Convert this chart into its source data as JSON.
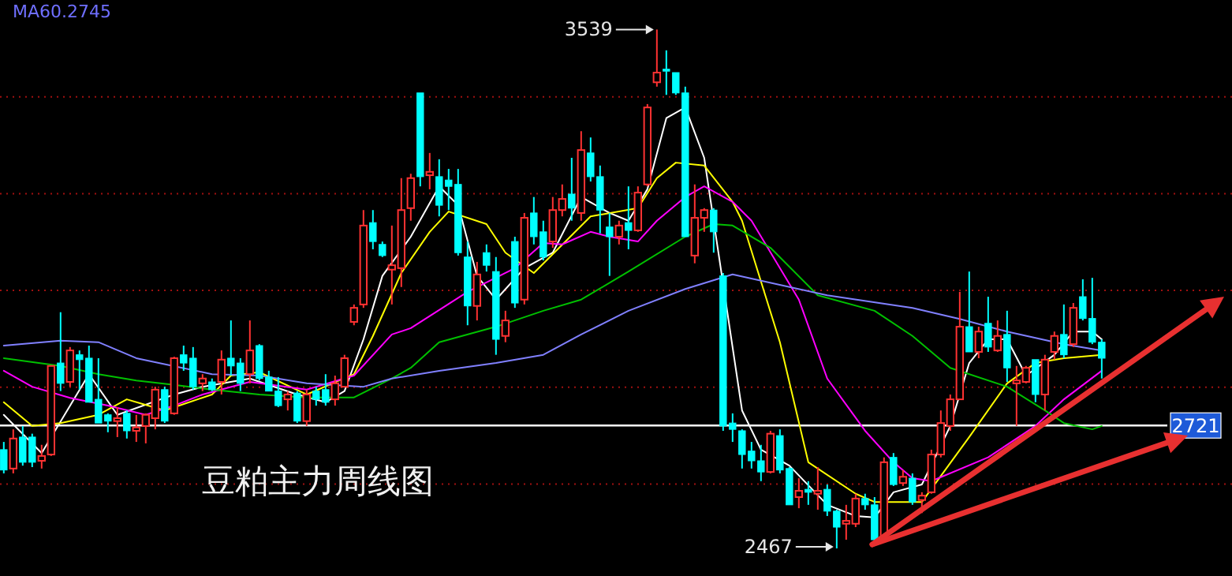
{
  "chart_data": {
    "type": "candlestick",
    "title": "豆粕主力周线图",
    "categories": [
      null,
      null,
      null,
      null,
      null,
      null,
      null,
      null,
      null,
      null,
      null,
      null,
      null,
      null,
      null,
      null,
      null,
      null,
      null,
      null,
      null,
      null,
      null,
      null,
      null,
      null,
      null,
      null,
      null,
      null,
      null,
      null,
      null,
      null,
      null,
      null,
      null,
      null,
      null,
      null,
      null,
      null,
      null,
      null,
      null,
      null,
      null,
      null,
      null,
      null,
      null,
      null,
      null,
      null,
      null,
      null,
      null,
      null,
      null,
      null,
      null,
      null,
      null,
      null,
      null,
      null,
      null,
      null,
      null,
      null,
      null,
      null,
      null,
      null,
      null,
      null,
      null,
      null,
      null,
      null,
      null,
      null,
      null,
      null,
      null,
      null,
      null,
      null,
      null,
      null,
      null,
      null,
      null,
      null,
      null,
      null,
      null,
      null,
      null,
      null,
      null,
      null,
      null,
      null,
      null,
      null,
      null,
      null,
      null,
      null,
      null,
      null,
      null,
      null,
      null,
      null,
      null
    ],
    "ohlc": [
      [
        2671,
        2687,
        2622,
        2629
      ],
      [
        2632,
        2713,
        2622,
        2694
      ],
      [
        2697,
        2720,
        2638,
        2645
      ],
      [
        2697,
        2704,
        2635,
        2645
      ],
      [
        2648,
        2681,
        2632,
        2658
      ],
      [
        2661,
        2844,
        2658,
        2844
      ],
      [
        2850,
        2955,
        2792,
        2808
      ],
      [
        2811,
        2883,
        2801,
        2876
      ],
      [
        2867,
        2876,
        2795,
        2857
      ],
      [
        2860,
        2886,
        2769,
        2769
      ],
      [
        2775,
        2860,
        2726,
        2726
      ],
      [
        2743,
        2746,
        2707,
        2730
      ],
      [
        2730,
        2759,
        2697,
        2736
      ],
      [
        2746,
        2752,
        2694,
        2710
      ],
      [
        2710,
        2743,
        2687,
        2717
      ],
      [
        2720,
        2746,
        2684,
        2743
      ],
      [
        2736,
        2801,
        2713,
        2795
      ],
      [
        2795,
        2801,
        2726,
        2730
      ],
      [
        2746,
        2863,
        2743,
        2860
      ],
      [
        2867,
        2886,
        2834,
        2850
      ],
      [
        2860,
        2883,
        2795,
        2801
      ],
      [
        2808,
        2827,
        2792,
        2818
      ],
      [
        2811,
        2818,
        2792,
        2795
      ],
      [
        2811,
        2876,
        2785,
        2857
      ],
      [
        2860,
        2938,
        2824,
        2844
      ],
      [
        2850,
        2860,
        2792,
        2808
      ],
      [
        2827,
        2938,
        2808,
        2876
      ],
      [
        2886,
        2889,
        2814,
        2818
      ],
      [
        2821,
        2834,
        2792,
        2792
      ],
      [
        2792,
        2821,
        2759,
        2762
      ],
      [
        2775,
        2792,
        2752,
        2785
      ],
      [
        2788,
        2792,
        2726,
        2730
      ],
      [
        2730,
        2795,
        2720,
        2785
      ],
      [
        2792,
        2801,
        2762,
        2775
      ],
      [
        2795,
        2827,
        2762,
        2769
      ],
      [
        2775,
        2824,
        2762,
        2808
      ],
      [
        2801,
        2867,
        2801,
        2860
      ],
      [
        2935,
        2971,
        2928,
        2964
      ],
      [
        2971,
        3166,
        2964,
        3134
      ],
      [
        3140,
        3166,
        3085,
        3101
      ],
      [
        3095,
        3101,
        3069,
        3072
      ],
      [
        3043,
        3134,
        2971,
        3052
      ],
      [
        3046,
        3232,
        3007,
        3166
      ],
      [
        3170,
        3241,
        3144,
        3232
      ],
      [
        3408,
        3408,
        3215,
        3235
      ],
      [
        3238,
        3284,
        3209,
        3245
      ],
      [
        3235,
        3271,
        3153,
        3176
      ],
      [
        3228,
        3251,
        3166,
        3215
      ],
      [
        3219,
        3251,
        3072,
        3078
      ],
      [
        3069,
        3101,
        2928,
        2968
      ],
      [
        2968,
        3059,
        2938,
        3033
      ],
      [
        3078,
        3095,
        3039,
        3052
      ],
      [
        3039,
        3069,
        2867,
        2899
      ],
      [
        2906,
        2958,
        2893,
        2938
      ],
      [
        3101,
        3111,
        2964,
        2974
      ],
      [
        2981,
        3160,
        2971,
        3150
      ],
      [
        3160,
        3193,
        3095,
        3111
      ],
      [
        3121,
        3144,
        3062,
        3069
      ],
      [
        3101,
        3193,
        3088,
        3166
      ],
      [
        3166,
        3219,
        3153,
        3189
      ],
      [
        3199,
        3274,
        3144,
        3170
      ],
      [
        3160,
        3329,
        3144,
        3290
      ],
      [
        3284,
        3316,
        3225,
        3235
      ],
      [
        3235,
        3258,
        3118,
        3166
      ],
      [
        3131,
        3160,
        3030,
        3111
      ],
      [
        3111,
        3144,
        3095,
        3134
      ],
      [
        3140,
        3215,
        3085,
        3124
      ],
      [
        3124,
        3215,
        3121,
        3202
      ],
      [
        3219,
        3385,
        3215,
        3378
      ],
      [
        3430,
        3539,
        3421,
        3450
      ],
      [
        3457,
        3496,
        3404,
        3453
      ],
      [
        3450,
        3450,
        3404,
        3408
      ],
      [
        3408,
        3421,
        3111,
        3111
      ],
      [
        3072,
        3219,
        3056,
        3150
      ],
      [
        3150,
        3170,
        3121,
        3166
      ],
      [
        3166,
        3170,
        3078,
        3121
      ],
      [
        3030,
        3036,
        2710,
        2720
      ],
      [
        2726,
        2746,
        2687,
        2713
      ],
      [
        2710,
        2713,
        2632,
        2661
      ],
      [
        2668,
        2687,
        2632,
        2648
      ],
      [
        2648,
        2681,
        2606,
        2625
      ],
      [
        2625,
        2710,
        2622,
        2704
      ],
      [
        2700,
        2713,
        2622,
        2629
      ],
      [
        2632,
        2635,
        2557,
        2557
      ],
      [
        2573,
        2612,
        2550,
        2586
      ],
      [
        2589,
        2606,
        2557,
        2583
      ],
      [
        2580,
        2635,
        2547,
        2586
      ],
      [
        2589,
        2599,
        2534,
        2544
      ],
      [
        2544,
        2547,
        2467,
        2511
      ],
      [
        2518,
        2557,
        2485,
        2524
      ],
      [
        2518,
        2580,
        2511,
        2570
      ],
      [
        2570,
        2580,
        2547,
        2557
      ],
      [
        2557,
        2573,
        2482,
        2485
      ],
      [
        2485,
        2655,
        2482,
        2645
      ],
      [
        2655,
        2664,
        2596,
        2599
      ],
      [
        2602,
        2629,
        2596,
        2615
      ],
      [
        2612,
        2622,
        2557,
        2563
      ],
      [
        2567,
        2583,
        2540,
        2576
      ],
      [
        2583,
        2671,
        2580,
        2661
      ],
      [
        2661,
        2752,
        2655,
        2726
      ],
      [
        2720,
        2785,
        2710,
        2775
      ],
      [
        2775,
        2997,
        2775,
        2925
      ],
      [
        2925,
        3039,
        2873,
        2873
      ],
      [
        2873,
        2925,
        2860,
        2915
      ],
      [
        2932,
        2987,
        2873,
        2883
      ],
      [
        2876,
        2938,
        2873,
        2906
      ],
      [
        2909,
        2958,
        2811,
        2840
      ],
      [
        2808,
        2844,
        2720,
        2814
      ],
      [
        2811,
        2844,
        2808,
        2840
      ],
      [
        2857,
        2857,
        2769,
        2785
      ],
      [
        2785,
        2867,
        2752,
        2857
      ],
      [
        2873,
        2915,
        2857,
        2906
      ],
      [
        2909,
        2971,
        2860,
        2867
      ],
      [
        2889,
        2974,
        2883,
        2964
      ],
      [
        2987,
        3023,
        2938,
        2942
      ],
      [
        2942,
        3026,
        2889,
        2893
      ],
      [
        2893,
        2899,
        2818,
        2860
      ]
    ],
    "colors": [
      "#00ffff",
      "#ff3232",
      "#00ffff",
      "#00ffff",
      "#ff3232",
      "#ff3232",
      "#00ffff",
      "#ff3232",
      "#00ffff",
      "#00ffff",
      "#00ffff",
      "#00ffff",
      "#ff3232",
      "#00ffff",
      "#ff3232",
      "#ff3232",
      "#ff3232",
      "#00ffff",
      "#ff3232",
      "#00ffff",
      "#00ffff",
      "#ff3232",
      "#00ffff",
      "#ff3232",
      "#00ffff",
      "#00ffff",
      "#ff3232",
      "#00ffff",
      "#00ffff",
      "#00ffff",
      "#ff3232",
      "#00ffff",
      "#ff3232",
      "#00ffff",
      "#00ffff",
      "#ff3232",
      "#ff3232",
      "#ff3232",
      "#ff3232",
      "#00ffff",
      "#00ffff",
      "#ff3232",
      "#ff3232",
      "#ff3232",
      "#00ffff",
      "#ff3232",
      "#00ffff",
      "#00ffff",
      "#00ffff",
      "#00ffff",
      "#ff3232",
      "#00ffff",
      "#00ffff",
      "#ff3232",
      "#00ffff",
      "#ff3232",
      "#00ffff",
      "#00ffff",
      "#ff3232",
      "#ff3232",
      "#00ffff",
      "#ff3232",
      "#00ffff",
      "#00ffff",
      "#00ffff",
      "#ff3232",
      "#00ffff",
      "#ff3232",
      "#ff3232",
      "#ff3232",
      "#00ffff",
      "#00ffff",
      "#00ffff",
      "#ff3232",
      "#ff3232",
      "#00ffff",
      "#00ffff",
      "#00ffff",
      "#00ffff",
      "#00ffff",
      "#00ffff",
      "#ff3232",
      "#00ffff",
      "#00ffff",
      "#ff3232",
      "#00ffff",
      "#ff3232",
      "#00ffff",
      "#00ffff",
      "#ff3232",
      "#ff3232",
      "#00ffff",
      "#00ffff",
      "#ff3232",
      "#00ffff",
      "#ff3232",
      "#00ffff",
      "#ff3232",
      "#ff3232",
      "#ff3232",
      "#ff3232",
      "#ff3232",
      "#00ffff",
      "#ff3232",
      "#00ffff",
      "#ff3232",
      "#00ffff",
      "#ff3232",
      "#ff3232",
      "#00ffff",
      "#ff3232",
      "#ff3232",
      "#00ffff",
      "#ff3232",
      "#00ffff",
      "#00ffff",
      "#00ffff"
    ],
    "series": [
      {
        "type": "line",
        "color": "#ffffff",
        "values": [
          2743,
          null,
          null,
          null,
          2664,
          null,
          null,
          null,
          null,
          2827,
          null,
          null,
          2743,
          null,
          null,
          null,
          null,
          null,
          2785,
          null,
          null,
          2801,
          null,
          null,
          null,
          null,
          2818,
          null,
          null,
          null,
          null,
          2785,
          null,
          null,
          2769,
          null,
          2792,
          null,
          2899,
          null,
          3030,
          null,
          null,
          3111,
          null,
          null,
          3215,
          null,
          3176,
          null,
          3030,
          null,
          2981,
          null,
          null,
          3046,
          null,
          null,
          3078,
          null,
          null,
          3193,
          null,
          null,
          3160,
          null,
          3144,
          null,
          3209,
          null,
          3356,
          null,
          3378,
          null,
          3274,
          null,
          null,
          null,
          2752,
          null,
          2671,
          null,
          null,
          2638,
          null,
          null,
          null,
          2557,
          null,
          null,
          2534,
          null,
          2531,
          null,
          2583,
          null,
          null,
          2599,
          null,
          null,
          2720,
          null,
          2850,
          null,
          2899,
          null,
          2899,
          null,
          2824,
          null,
          null,
          2867,
          null,
          2915,
          null,
          2915,
          2899
        ]
      },
      {
        "type": "line",
        "color": "#ffff00",
        "values": [
          2769,
          null,
          null,
          2720,
          null,
          null,
          2726,
          null,
          null,
          null,
          2743,
          null,
          null,
          2775,
          null,
          null,
          null,
          2752,
          null,
          null,
          null,
          null,
          2785,
          null,
          2824,
          null,
          null,
          2831,
          null,
          null,
          null,
          null,
          2785,
          null,
          null,
          null,
          null,
          2827,
          null,
          2906,
          null,
          null,
          3036,
          null,
          null,
          3121,
          null,
          3163,
          null,
          null,
          null,
          3137,
          null,
          3078,
          null,
          null,
          3036,
          null,
          null,
          null,
          null,
          null,
          3153,
          null,
          null,
          null,
          null,
          3170,
          null,
          3232,
          null,
          3264,
          null,
          null,
          3258,
          null,
          null,
          3183,
          3144,
          null,
          null,
          null,
          2893,
          null,
          null,
          2645,
          null,
          null,
          null,
          null,
          2580,
          null,
          2563,
          null,
          null,
          null,
          null,
          2563,
          null,
          null,
          null,
          null,
          2697,
          null,
          null,
          null,
          2808,
          null,
          null,
          2850,
          null,
          null,
          2860,
          null,
          null,
          null,
          2867
        ]
      },
      {
        "type": "line",
        "color": "#ff00ff",
        "values": [
          2834,
          null,
          null,
          2801,
          null,
          null,
          null,
          2778,
          null,
          null,
          null,
          2762,
          null,
          null,
          null,
          2743,
          null,
          null,
          2762,
          null,
          null,
          2785,
          null,
          null,
          null,
          null,
          2811,
          null,
          null,
          null,
          null,
          null,
          2795,
          null,
          null,
          null,
          null,
          2824,
          null,
          null,
          null,
          2909,
          null,
          2922,
          null,
          null,
          null,
          null,
          null,
          2997,
          null,
          null,
          null,
          null,
          3046,
          null,
          null,
          3098,
          null,
          3095,
          null,
          null,
          3121,
          null,
          3111,
          null,
          null,
          3101,
          null,
          3144,
          null,
          null,
          3193,
          null,
          3215,
          null,
          null,
          3183,
          null,
          3144,
          null,
          null,
          null,
          null,
          2981,
          null,
          null,
          2818,
          null,
          null,
          null,
          2710,
          null,
          null,
          2645,
          null,
          2612,
          null,
          2606,
          null,
          null,
          null,
          null,
          null,
          2655,
          null,
          null,
          null,
          null,
          2720,
          null,
          null,
          2775,
          null,
          null,
          null,
          2834
        ]
      },
      {
        "type": "line",
        "color": "#00c000",
        "values": [
          2860,
          null,
          null,
          null,
          null,
          null,
          2844,
          null,
          null,
          null,
          2827,
          null,
          null,
          null,
          2814,
          null,
          null,
          null,
          2805,
          null,
          null,
          null,
          2795,
          null,
          null,
          null,
          null,
          2785,
          null,
          null,
          null,
          null,
          2779,
          null,
          null,
          null,
          null,
          2779,
          null,
          null,
          null,
          2818,
          null,
          2840,
          null,
          null,
          2893,
          null,
          null,
          null,
          null,
          null,
          2925,
          null,
          null,
          null,
          null,
          2958,
          null,
          null,
          null,
          2981,
          null,
          null,
          null,
          null,
          3039,
          null,
          null,
          null,
          null,
          null,
          3111,
          null,
          null,
          3137,
          null,
          3134,
          null,
          null,
          null,
          3088,
          null,
          null,
          null,
          null,
          2990,
          null,
          null,
          null,
          null,
          null,
          2958,
          null,
          null,
          null,
          2906,
          null,
          null,
          null,
          2840,
          null,
          null,
          null,
          null,
          null,
          2801,
          null,
          null,
          null,
          2752,
          null,
          2726,
          null,
          null,
          2713,
          2720
        ]
      },
      {
        "type": "line",
        "color": "#8080ff",
        "values": [
          2886,
          null,
          null,
          null,
          null,
          null,
          2896,
          null,
          null,
          null,
          2893,
          null,
          null,
          null,
          2860,
          null,
          null,
          null,
          null,
          null,
          null,
          null,
          2827,
          null,
          null,
          null,
          null,
          2824,
          null,
          null,
          null,
          null,
          2808,
          null,
          null,
          null,
          null,
          null,
          2801,
          null,
          null,
          2818,
          null,
          null,
          null,
          null,
          2834,
          null,
          null,
          null,
          null,
          null,
          2850,
          null,
          null,
          null,
          null,
          2867,
          null,
          null,
          null,
          2909,
          null,
          null,
          null,
          null,
          2958,
          null,
          null,
          null,
          null,
          null,
          3003,
          null,
          null,
          null,
          null,
          3033,
          null,
          null,
          null,
          null,
          null,
          null,
          null,
          null,
          null,
          2990,
          null,
          null,
          null,
          null,
          null,
          null,
          null,
          null,
          2964,
          null,
          null,
          null,
          null,
          2941,
          null,
          null,
          null,
          null,
          2915,
          null,
          null,
          null,
          null,
          null,
          2889,
          null,
          null,
          null,
          2876
        ]
      }
    ],
    "ylim": [
      2410,
      3600
    ],
    "yticks": [
      {
        "value": 2600,
        "label": null
      },
      {
        "value": 2800,
        "label": null
      },
      {
        "value": 3000,
        "label": null
      },
      {
        "value": 3200,
        "label": null
      },
      {
        "value": 3400,
        "label": null
      }
    ],
    "grid": "y",
    "ref_lines": [
      {
        "axis": "y",
        "value": 2721,
        "label": "2721",
        "color": "#ffffff"
      }
    ],
    "annotations": [
      "MA60.2745",
      "3539",
      "2467"
    ]
  }
}
